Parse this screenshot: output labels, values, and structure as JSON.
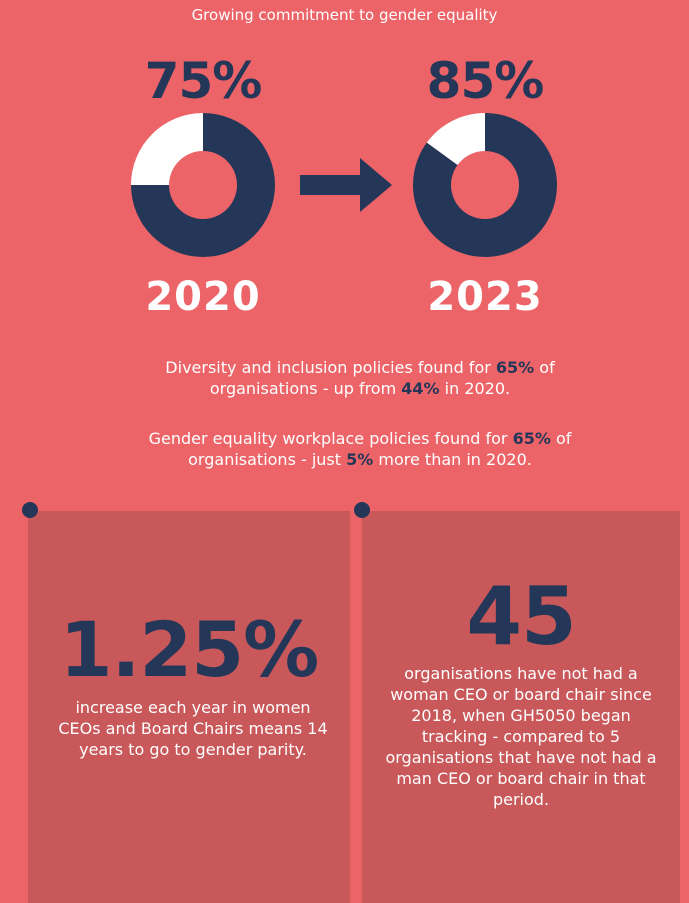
{
  "title": "Growing commitment to gender equality",
  "donuts": [
    {
      "label": "75%",
      "value": 75,
      "year": "2020"
    },
    {
      "label": "85%",
      "value": 85,
      "year": "2023"
    }
  ],
  "paragraphs": [
    [
      "Diversity and inclusion policies found for ",
      "65%",
      " of organisations - up from ",
      "44%",
      " in 2020."
    ],
    [
      "Gender equality workplace policies found for ",
      "65%",
      " of organisations - just ",
      "5%",
      " more than in 2020."
    ]
  ],
  "cards": [
    {
      "figure": "1.25%",
      "text": "increase each year in women CEOs and Board Chairs means 14 years to go to gender parity."
    },
    {
      "figure": "45",
      "text": "organisations have not had a woman CEO or board chair since 2018, when GH5050 began tracking - compared to 5 organisations that have not had a man CEO or board chair in that period."
    }
  ]
}
